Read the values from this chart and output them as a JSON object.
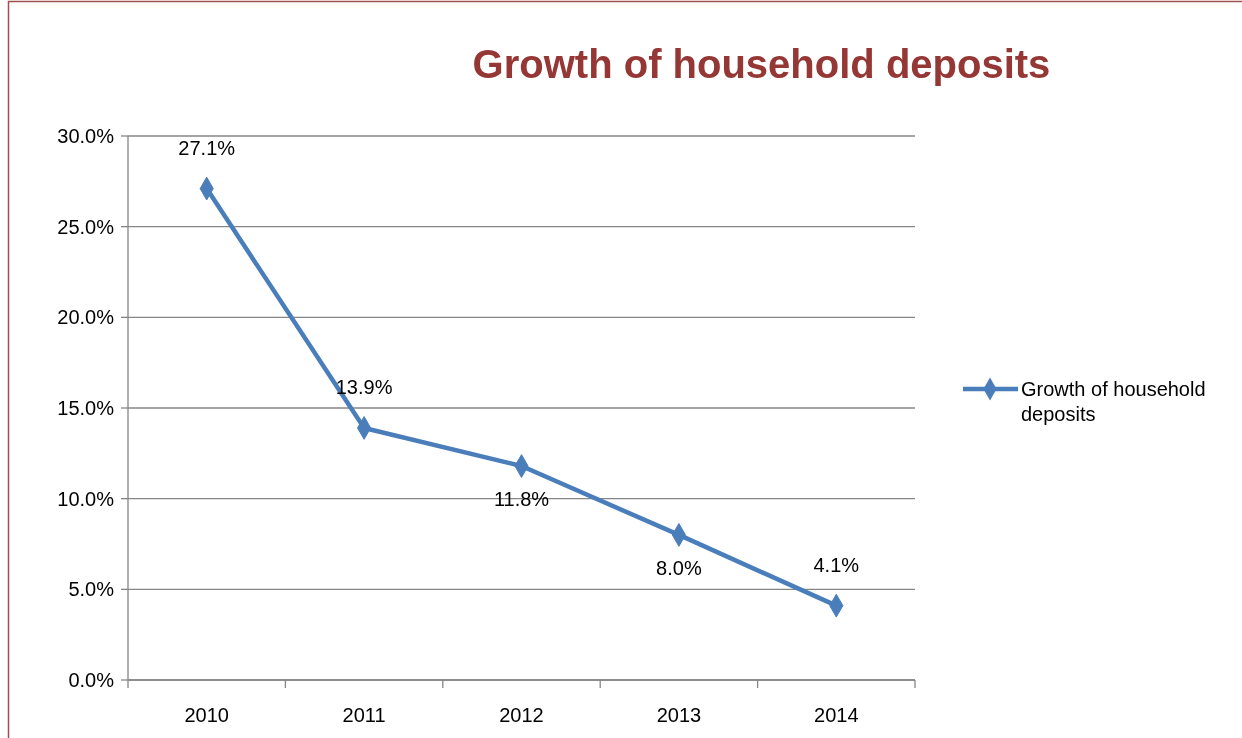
{
  "chart_data": {
    "type": "line",
    "title": "Growth of household deposits",
    "categories": [
      "2010",
      "2011",
      "2012",
      "2013",
      "2014"
    ],
    "series": [
      {
        "name": "Growth of household deposits",
        "color": "#4a7ebb",
        "values": [
          27.1,
          13.9,
          11.8,
          8.0,
          4.1
        ],
        "value_labels": [
          "27.1%",
          "13.9%",
          "11.8%",
          "8.0%",
          "4.1%"
        ]
      }
    ],
    "ylim": [
      0,
      30
    ],
    "yticks": [
      {
        "value": 0,
        "label": "0.0%"
      },
      {
        "value": 5,
        "label": "5.0%"
      },
      {
        "value": 10,
        "label": "10.0%"
      },
      {
        "value": 15,
        "label": "15.0%"
      },
      {
        "value": 20,
        "label": "20.0%"
      },
      {
        "value": 25,
        "label": "25.0%"
      },
      {
        "value": 30,
        "label": "30.0%"
      }
    ],
    "grid": "y",
    "legend": "right",
    "marker": "diamond",
    "line_style": "solid"
  }
}
